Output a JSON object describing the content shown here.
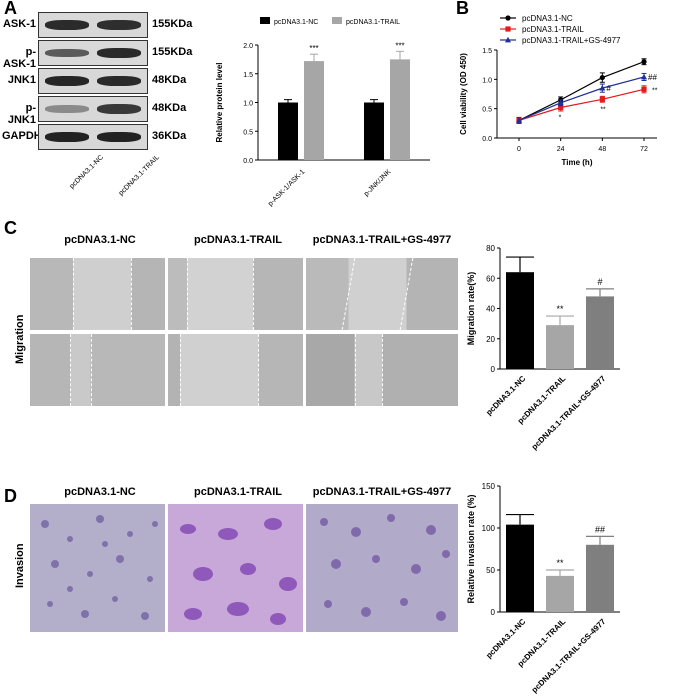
{
  "panels": {
    "A": "A",
    "B": "B",
    "C": "C",
    "D": "D"
  },
  "western_blot": {
    "rows": [
      {
        "name": "ASK-1",
        "kda": "155KDa"
      },
      {
        "name": "p-ASK-1",
        "kda": "155KDa"
      },
      {
        "name": "JNK1",
        "kda": "48KDa"
      },
      {
        "name": "p-JNK1",
        "kda": "48KDa"
      },
      {
        "name": "GAPDH",
        "kda": "36KDa"
      }
    ],
    "lanes": [
      "pcDNA3.1-NC",
      "pcDNA3.1-TRAIL"
    ]
  },
  "migration_panel": {
    "titles": [
      "pcDNA3.1-NC",
      "pcDNA3.1-TRAIL",
      "pcDNA3.1-TRAIL+GS-4977"
    ],
    "side_label": "Migration"
  },
  "invasion_panel": {
    "titles": [
      "pcDNA3.1-NC",
      "pcDNA3.1-TRAIL",
      "pcDNA3.1-TRAIL+GS-4977"
    ],
    "side_label": "Invasion"
  },
  "colors": {
    "black": "#000000",
    "gray": "#a6a6a6",
    "gray_dark": "#7f7f7f",
    "red": "#e41a1c",
    "blue": "#1f2f9a",
    "stain": "#7a5aa8"
  },
  "chart_data": [
    {
      "id": "protein",
      "type": "bar",
      "categories": [
        "p-ASK-1/ASK-1",
        "p-JNK/JNK"
      ],
      "series": [
        {
          "name": "pcDNA3.1-NC",
          "values": [
            1.0,
            1.0
          ],
          "errors": [
            0.05,
            0.05
          ]
        },
        {
          "name": "pcDNA3.1-TRAIL",
          "values": [
            1.72,
            1.75
          ],
          "errors": [
            0.12,
            0.14
          ]
        }
      ],
      "annotations": [
        "***",
        "***"
      ],
      "ylabel": "Relative protein level",
      "ylim": [
        0,
        2.0
      ],
      "yticks": [
        "0.0",
        "0.5",
        "1.0",
        "1.5",
        "2.0"
      ],
      "legend": "top"
    },
    {
      "id": "viability",
      "type": "line",
      "x": [
        0,
        24,
        48,
        72
      ],
      "xlabel": "Time (h)",
      "ylabel": "Cell viability (OD 450)",
      "ylim": [
        0,
        1.5
      ],
      "yticks": [
        "0.0",
        "0.5",
        "1.0",
        "1.5"
      ],
      "series": [
        {
          "name": "pcDNA3.1-NC",
          "values": [
            0.3,
            0.65,
            1.03,
            1.3
          ],
          "errors": [
            0.05,
            0.05,
            0.08,
            0.05
          ],
          "marks": [
            "",
            "",
            "",
            ""
          ]
        },
        {
          "name": "pcDNA3.1-TRAIL",
          "values": [
            0.3,
            0.52,
            0.66,
            0.83
          ],
          "errors": [
            0.05,
            0.06,
            0.05,
            0.06
          ],
          "marks": [
            "",
            "*",
            "**",
            "**"
          ]
        },
        {
          "name": "pcDNA3.1-TRAIL+GS-4977",
          "values": [
            0.3,
            0.6,
            0.85,
            1.04
          ],
          "errors": [
            0.05,
            0.05,
            0.07,
            0.06
          ],
          "marks": [
            "",
            "",
            "#",
            "##"
          ]
        }
      ],
      "legend": "top-left"
    },
    {
      "id": "migration",
      "type": "bar",
      "categories": [
        "pcDNA3.1-NC",
        "pcDNA3.1-TRAIL",
        "pcDNA3.1-TRAIL+GS-4977"
      ],
      "values": [
        64,
        29,
        48
      ],
      "errors": [
        10,
        6,
        5
      ],
      "annotations": [
        "",
        "**",
        "#"
      ],
      "ylabel": "Migration rate(%)",
      "ylim": [
        0,
        80
      ],
      "yticks": [
        "0",
        "20",
        "40",
        "60",
        "80"
      ]
    },
    {
      "id": "invasion",
      "type": "bar",
      "categories": [
        "pcDNA3.1-NC",
        "pcDNA3.1-TRAIL",
        "pcDNA3.1-TRAIL+GS-4977"
      ],
      "values": [
        104,
        43,
        80
      ],
      "errors": [
        12,
        7,
        10
      ],
      "annotations": [
        "",
        "**",
        "##"
      ],
      "ylabel": "Relative invasion rate (%)",
      "ylim": [
        0,
        150
      ],
      "yticks": [
        "0",
        "50",
        "100",
        "150"
      ]
    }
  ]
}
